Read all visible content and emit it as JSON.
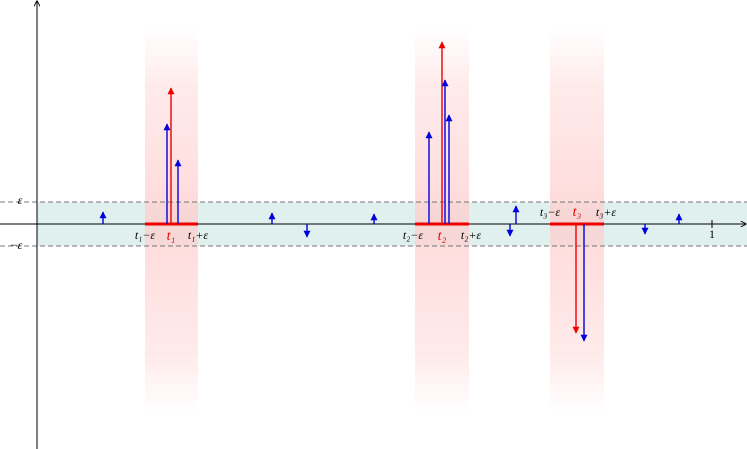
{
  "axis_labels": {
    "epsilon": "ε",
    "neg_epsilon": "−ε",
    "one": "1"
  },
  "intervals": [
    {
      "left": "t₁−ε",
      "center": "t₁",
      "right": "t₁+ε"
    },
    {
      "left": "t₂−ε",
      "center": "t₂",
      "right": "t₂+ε"
    },
    {
      "left": "t₃−ε",
      "center": "t₃",
      "right": "t₃+ε"
    }
  ]
}
